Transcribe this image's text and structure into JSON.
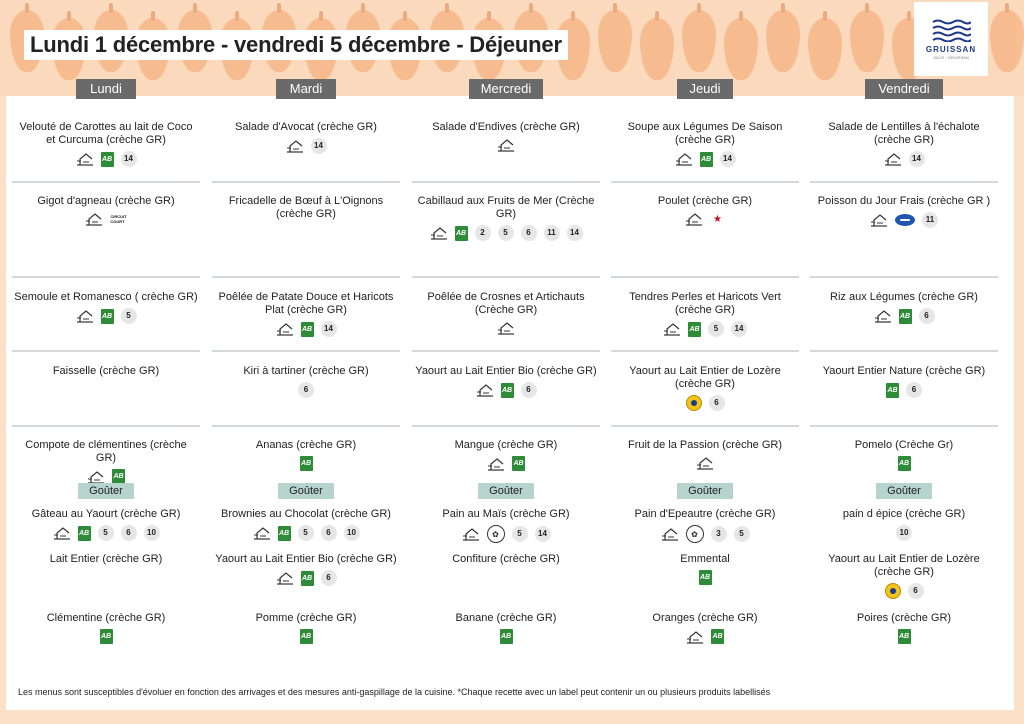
{
  "title": "Lundi 1 décembre - vendredi 5 décembre  - Déjeuner",
  "logo": {
    "name": "GRUISSAN",
    "subtitle": "VILLE · GRUISSAN",
    "icon": "waves-icon"
  },
  "colors": {
    "bio_green": "#2e8b37",
    "day_header": "#6a6a6a",
    "gouter": "#b7d3ce",
    "background": "#fce0c8"
  },
  "days": [
    {
      "name": "Lundi",
      "meals": [
        {
          "name": "Velouté de Carottes au lait de Coco et Curcuma (crèche GR)",
          "badges": [
            "fait-maison",
            "bio",
            "14"
          ]
        },
        {
          "name": "Gigot d'agneau  (crèche GR)",
          "badges": [
            "fait-maison",
            "circuit-court"
          ]
        },
        {
          "name": "Semoule et Romanesco ( crèche GR)",
          "badges": [
            "fait-maison",
            "bio",
            "5"
          ]
        },
        {
          "name": "Faisselle (crèche GR)",
          "badges": []
        },
        {
          "name": "Compote de  clémentines (crèche GR)",
          "badges": [
            "fait-maison",
            "bio"
          ]
        }
      ],
      "gouter_label": "Goûter",
      "gouter": [
        {
          "name": "Gâteau au Yaourt (crèche GR)",
          "badges": [
            "fait-maison",
            "bio",
            "5",
            "6",
            "10"
          ]
        },
        {
          "name": "Lait Entier (crèche GR)",
          "badges": []
        },
        {
          "name": "Clémentine (crèche GR)",
          "badges": [
            "bio"
          ]
        }
      ]
    },
    {
      "name": "Mardi",
      "meals": [
        {
          "name": "Salade d'Avocat (crèche GR)",
          "badges": [
            "fait-maison",
            "14"
          ]
        },
        {
          "name": "Fricadelle de Bœuf à L'Oignons (crèche GR)",
          "badges": []
        },
        {
          "name": "Poêlée de Patate Douce et Haricots Plat  (crèche GR)",
          "badges": [
            "fait-maison",
            "bio",
            "14"
          ]
        },
        {
          "name": "Kiri à tartiner (crèche GR)",
          "badges": [
            "6"
          ]
        },
        {
          "name": "Ananas (crèche GR)",
          "badges": [
            "bio"
          ]
        }
      ],
      "gouter_label": "Goûter",
      "gouter": [
        {
          "name": "Brownies au Chocolat (crèche GR)",
          "badges": [
            "fait-maison",
            "bio",
            "5",
            "6",
            "10"
          ]
        },
        {
          "name": "Yaourt au Lait Entier Bio (crèche GR)",
          "badges": [
            "fait-maison",
            "bio",
            "6"
          ]
        },
        {
          "name": "Pomme (crèche GR)",
          "badges": [
            "bio"
          ]
        }
      ]
    },
    {
      "name": "Mercredi",
      "meals": [
        {
          "name": "Salade d'Endives (crèche GR)",
          "badges": [
            "fait-maison"
          ]
        },
        {
          "name": "Cabillaud aux Fruits de Mer (Crèche GR)",
          "badges": [
            "fait-maison",
            "bio",
            "2",
            "5",
            "6",
            "11",
            "14"
          ]
        },
        {
          "name": "Poêlée de Crosnes et Artichauts (Crèche GR)",
          "badges": [
            "fait-maison"
          ]
        },
        {
          "name": "Yaourt au Lait Entier Bio (crèche GR)",
          "badges": [
            "fait-maison",
            "bio",
            "6"
          ]
        },
        {
          "name": "Mangue  (crèche GR)",
          "badges": [
            "fait-maison",
            "bio"
          ]
        }
      ],
      "gouter_label": "Goûter",
      "gouter": [
        {
          "name": "Pain au Maïs (crèche GR)",
          "badges": [
            "fait-maison",
            "vegetarien",
            "5",
            "14"
          ]
        },
        {
          "name": "Confiture  (crèche GR)",
          "badges": []
        },
        {
          "name": "Banane (crèche GR)",
          "badges": [
            "bio"
          ]
        }
      ]
    },
    {
      "name": "Jeudi",
      "meals": [
        {
          "name": "Soupe aux Légumes De Saison (crèche GR)",
          "badges": [
            "fait-maison",
            "bio",
            "14"
          ]
        },
        {
          "name": "Poulet (crèche GR)",
          "badges": [
            "fait-maison",
            "france"
          ]
        },
        {
          "name": "Tendres Perles et Haricots Vert (crèche GR)",
          "badges": [
            "fait-maison",
            "bio",
            "5",
            "14"
          ]
        },
        {
          "name": "Yaourt au Lait Entier de Lozère (crèche GR)",
          "badges": [
            "label-rouge",
            "6"
          ]
        },
        {
          "name": "Fruit de la Passion  (crèche GR)",
          "badges": [
            "fait-maison"
          ]
        }
      ],
      "gouter_label": "Goûter",
      "gouter": [
        {
          "name": "Pain d'Epeautre (crèche GR)",
          "badges": [
            "fait-maison",
            "vegetarien",
            "3",
            "5"
          ]
        },
        {
          "name": "Emmental",
          "badges": [
            "bio"
          ]
        },
        {
          "name": "Oranges (crèche GR)",
          "badges": [
            "fait-maison",
            "bio"
          ]
        }
      ]
    },
    {
      "name": "Vendredi",
      "meals": [
        {
          "name": "Salade de Lentilles à l'échalote (crèche GR)",
          "badges": [
            "fait-maison",
            "14"
          ]
        },
        {
          "name": "Poisson du Jour Frais (crèche GR )",
          "badges": [
            "fait-maison",
            "peche-durable",
            "11"
          ]
        },
        {
          "name": "Riz aux Légumes (crèche GR)",
          "badges": [
            "fait-maison",
            "bio",
            "6"
          ]
        },
        {
          "name": "Yaourt Entier Nature (crèche GR)",
          "badges": [
            "bio",
            "6"
          ]
        },
        {
          "name": "Pomelo (Crèche Gr)",
          "badges": [
            "bio"
          ]
        }
      ],
      "gouter_label": "Goûter",
      "gouter": [
        {
          "name": "pain d épice (crèche GR)",
          "badges": [
            "10"
          ]
        },
        {
          "name": "Yaourt au Lait Entier de Lozère (crèche GR)",
          "badges": [
            "label-rouge",
            "6"
          ]
        },
        {
          "name": "Poires (crèche GR)",
          "badges": [
            "bio"
          ]
        }
      ]
    }
  ],
  "icon_labels": {
    "bio": "AB",
    "circuit_court": "CIRCUIT\nCOURT"
  },
  "footer": "Les menus sont susceptibles d'évoluer en fonction des arrivages et des mesures anti-gaspillage de la cuisine. *Chaque recette avec un label peut contenir un ou plusieurs produits labellisés"
}
